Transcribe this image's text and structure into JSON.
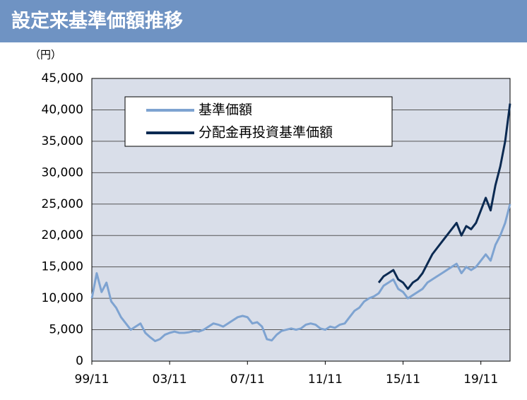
{
  "chart_data": {
    "type": "line",
    "title": "設定来基準価額推移",
    "unit": "（円）",
    "legend": "upper left",
    "grid": true,
    "categories": [
      "99/11",
      null,
      null,
      null,
      null,
      null,
      null,
      null,
      null,
      null,
      null,
      null,
      null,
      null,
      null,
      null,
      "03/11",
      null,
      null,
      null,
      null,
      null,
      null,
      null,
      null,
      null,
      null,
      null,
      null,
      null,
      null,
      null,
      "07/11",
      null,
      null,
      null,
      null,
      null,
      null,
      null,
      null,
      null,
      null,
      null,
      null,
      null,
      null,
      null,
      "11/11",
      null,
      null,
      null,
      null,
      null,
      null,
      null,
      null,
      null,
      null,
      null,
      null,
      null,
      null,
      null,
      "15/11",
      null,
      null,
      null,
      null,
      null,
      null,
      null,
      null,
      null,
      null,
      null,
      null,
      null,
      null,
      null,
      "19/11",
      null,
      null,
      null,
      null,
      null,
      null
    ],
    "series": [
      {
        "name": "基準価額",
        "color": "#7ea3d1",
        "values": [
          10000,
          14000,
          11000,
          12500,
          9500,
          8500,
          7000,
          6000,
          5000,
          5500,
          6000,
          4500,
          3800,
          3200,
          3500,
          4200,
          4500,
          4700,
          4500,
          4500,
          4600,
          4800,
          4700,
          5000,
          5500,
          6000,
          5800,
          5500,
          6000,
          6500,
          7000,
          7200,
          7000,
          6000,
          6200,
          5500,
          3500,
          3300,
          4200,
          4800,
          5000,
          5200,
          5000,
          5200,
          5800,
          6000,
          5800,
          5200,
          5000,
          5500,
          5300,
          5800,
          6000,
          7000,
          8000,
          8500,
          9500,
          10000,
          10300,
          10800,
          12000,
          12500,
          13000,
          11500,
          11000,
          10000,
          10500,
          11000,
          11500,
          12500,
          13000,
          13500,
          14000,
          14500,
          15000,
          15500,
          14000,
          15000,
          14500,
          15000,
          16000,
          17000,
          16000,
          18500,
          20000,
          22000,
          25000
        ]
      },
      {
        "name": "分配金再投資基準価額",
        "color": "#0b2a52",
        "values": [
          null,
          null,
          null,
          null,
          null,
          null,
          null,
          null,
          null,
          null,
          null,
          null,
          null,
          null,
          null,
          null,
          null,
          null,
          null,
          null,
          null,
          null,
          null,
          null,
          null,
          null,
          null,
          null,
          null,
          null,
          null,
          null,
          null,
          null,
          null,
          null,
          null,
          null,
          null,
          null,
          null,
          null,
          null,
          null,
          null,
          null,
          null,
          null,
          null,
          null,
          null,
          null,
          null,
          null,
          null,
          null,
          null,
          null,
          null,
          12500,
          13500,
          14000,
          14500,
          13000,
          12500,
          11500,
          12500,
          13000,
          14000,
          15500,
          17000,
          18000,
          19000,
          20000,
          21000,
          22000,
          20000,
          21500,
          21000,
          22000,
          24000,
          26000,
          24000,
          28000,
          31000,
          35000,
          41000
        ]
      }
    ],
    "ylim": [
      0,
      45000
    ],
    "yticks": [
      0,
      {
        "value": 5000,
        "label": "5,000"
      },
      {
        "value": 10000,
        "label": "10,000"
      },
      {
        "value": 15000,
        "label": "15,000"
      },
      {
        "value": 20000,
        "label": "20,000"
      },
      {
        "value": 25000,
        "label": "25,000"
      },
      {
        "value": 30000,
        "label": "30,000"
      },
      {
        "value": 35000,
        "label": "35,000"
      },
      {
        "value": 40000,
        "label": "40,000"
      },
      {
        "value": 45000,
        "label": "45,000"
      }
    ]
  }
}
